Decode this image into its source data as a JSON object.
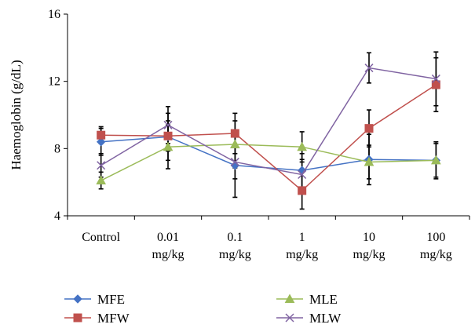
{
  "chart_data": {
    "type": "line",
    "title": "",
    "xlabel": "",
    "ylabel": "Haemoglobin (g/dL)",
    "ylim": [
      4,
      16
    ],
    "yticks": [
      4,
      8,
      12,
      16
    ],
    "categories": [
      [
        "Control"
      ],
      [
        "0.01",
        "mg/kg"
      ],
      [
        "0.1",
        "mg/kg"
      ],
      [
        "1",
        "mg/kg"
      ],
      [
        "10",
        "mg/kg"
      ],
      [
        "100",
        "mg/kg"
      ]
    ],
    "grid": false,
    "legend_position": "bottom",
    "series": [
      {
        "name": "MFE",
        "color": "#4472c4",
        "marker": "diamond",
        "values": [
          8.4,
          8.7,
          7.0,
          6.7,
          7.35,
          7.3
        ],
        "error": [
          0.8,
          1.4,
          1.9,
          1.0,
          1.5,
          1.1
        ]
      },
      {
        "name": "MFW",
        "color": "#c0504d",
        "marker": "square",
        "values": [
          8.8,
          8.75,
          8.9,
          5.5,
          9.2,
          11.8
        ],
        "error": [
          0.5,
          0.9,
          1.2,
          1.1,
          1.1,
          1.6
        ]
      },
      {
        "name": "MLE",
        "color": "#9bbb59",
        "marker": "triangle",
        "values": [
          6.1,
          8.1,
          8.25,
          8.1,
          7.2,
          7.3
        ],
        "error": [
          0.5,
          1.3,
          1.4,
          0.9,
          1.0,
          1.0
        ]
      },
      {
        "name": "MLW",
        "color": "#8064a2",
        "marker": "x",
        "values": [
          7.0,
          9.4,
          7.2,
          6.45,
          12.8,
          12.15
        ],
        "error": [
          0.7,
          1.1,
          1.0,
          0.9,
          0.9,
          1.6
        ]
      }
    ]
  }
}
